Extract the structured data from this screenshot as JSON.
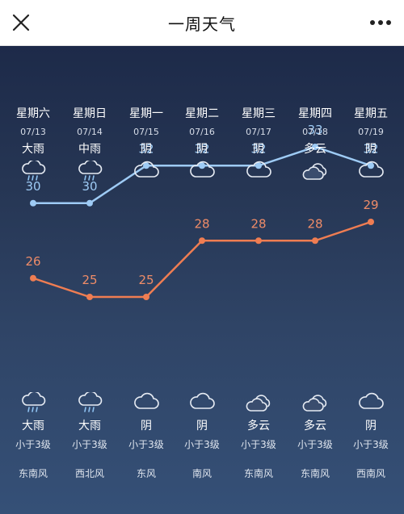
{
  "header": {
    "title": "一周天气",
    "close_icon": "close-icon",
    "more_icon": "more-dots-icon"
  },
  "colors": {
    "high_line": "#9ecbf5",
    "low_line": "#ef7d52",
    "panel_top": "#1d2a49",
    "panel_bottom": "#355077"
  },
  "days": [
    {
      "weekday": "星期六",
      "date": "07/13",
      "day_cond": "大雨",
      "day_icon": "rain-cloud-icon",
      "high": 30,
      "low": 26,
      "night_cond": "大雨",
      "night_icon": "rain-cloud-icon",
      "wind_level": "小于3级",
      "wind_dir": "东南风"
    },
    {
      "weekday": "星期日",
      "date": "07/14",
      "day_cond": "中雨",
      "day_icon": "rain-cloud-icon",
      "high": 30,
      "low": 25,
      "night_cond": "大雨",
      "night_icon": "rain-cloud-icon",
      "wind_level": "小于3级",
      "wind_dir": "西北风"
    },
    {
      "weekday": "星期一",
      "date": "07/15",
      "day_cond": "阴",
      "day_icon": "cloud-icon",
      "high": 32,
      "low": 25,
      "night_cond": "阴",
      "night_icon": "cloud-icon",
      "wind_level": "小于3级",
      "wind_dir": "东风"
    },
    {
      "weekday": "星期二",
      "date": "07/16",
      "day_cond": "阴",
      "day_icon": "cloud-icon",
      "high": 32,
      "low": 28,
      "night_cond": "阴",
      "night_icon": "cloud-icon",
      "wind_level": "小于3级",
      "wind_dir": "南风"
    },
    {
      "weekday": "星期三",
      "date": "07/17",
      "day_cond": "阴",
      "day_icon": "cloud-icon",
      "high": 32,
      "low": 28,
      "night_cond": "多云",
      "night_icon": "double-cloud-icon",
      "wind_level": "小于3级",
      "wind_dir": "东南风"
    },
    {
      "weekday": "星期四",
      "date": "07/18",
      "day_cond": "多云",
      "day_icon": "double-cloud-icon",
      "high": 33,
      "low": 28,
      "night_cond": "多云",
      "night_icon": "double-cloud-icon",
      "wind_level": "小于3级",
      "wind_dir": "东南风"
    },
    {
      "weekday": "星期五",
      "date": "07/19",
      "day_cond": "阴",
      "day_icon": "cloud-icon",
      "high": 32,
      "low": 29,
      "night_cond": "阴",
      "night_icon": "cloud-icon",
      "wind_level": "小于3级",
      "wind_dir": "西南风"
    }
  ]
}
